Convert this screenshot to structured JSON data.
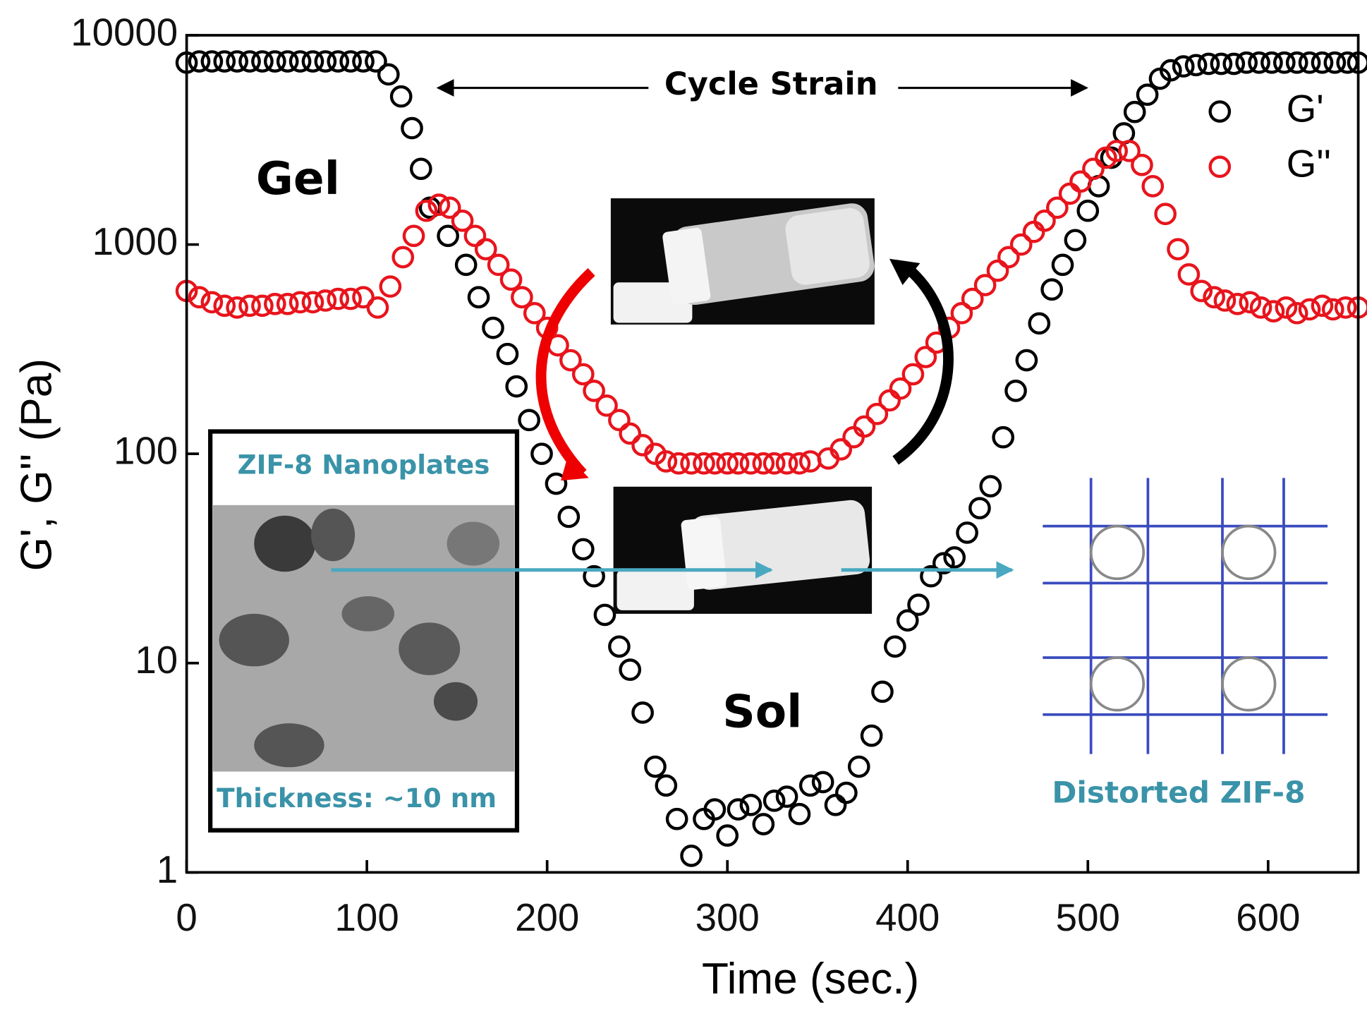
{
  "chart_data": {
    "type": "scatter",
    "xlabel": "Time (sec.)",
    "ylabel": "G', G'' (Pa)",
    "xlim": [
      0,
      650
    ],
    "ylim": [
      1,
      10000
    ],
    "ylog": true,
    "xticks": [
      0,
      100,
      200,
      300,
      400,
      500,
      600
    ],
    "yticks": [
      1,
      10,
      100,
      1000,
      10000
    ],
    "legend": "upper right",
    "series": [
      {
        "name": "G'",
        "color": "#000000",
        "x": [
          0,
          7,
          14,
          21,
          28,
          35,
          42,
          49,
          56,
          63,
          70,
          77,
          84,
          91,
          98,
          105,
          112,
          119,
          125,
          130,
          135,
          145,
          155,
          162,
          170,
          178,
          183,
          190,
          197,
          205,
          212,
          220,
          226,
          232,
          240,
          246,
          253,
          260,
          266,
          272,
          280,
          287,
          293,
          300,
          306,
          313,
          320,
          326,
          333,
          340,
          346,
          353,
          360,
          366,
          373,
          380,
          386,
          393,
          400,
          406,
          413,
          420,
          426,
          433,
          440,
          446,
          453,
          460,
          466,
          473,
          480,
          486,
          493,
          500,
          506,
          513,
          520,
          526,
          533,
          540,
          546,
          553,
          560,
          567,
          574,
          581,
          588,
          595,
          602,
          609,
          616,
          623,
          630,
          637,
          644,
          650
        ],
        "values": [
          7400,
          7500,
          7500,
          7500,
          7500,
          7500,
          7500,
          7500,
          7500,
          7500,
          7500,
          7500,
          7500,
          7500,
          7500,
          7500,
          6500,
          5100,
          3600,
          2300,
          1500,
          1100,
          800,
          560,
          400,
          300,
          210,
          145,
          100,
          72,
          50,
          35,
          26,
          17,
          12,
          9.3,
          5.8,
          3.2,
          2.6,
          1.8,
          1.2,
          1.8,
          2.0,
          1.5,
          2.0,
          2.1,
          1.7,
          2.2,
          2.3,
          1.9,
          2.6,
          2.7,
          2.1,
          2.4,
          3.2,
          4.5,
          7.3,
          12,
          16,
          19,
          26,
          30,
          32,
          42,
          55,
          70,
          120,
          200,
          280,
          420,
          610,
          800,
          1050,
          1450,
          1900,
          2600,
          3400,
          4300,
          5200,
          6200,
          6800,
          7100,
          7200,
          7300,
          7300,
          7300,
          7400,
          7400,
          7400,
          7400,
          7400,
          7400,
          7400,
          7400,
          7400,
          7400
        ]
      },
      {
        "name": "G''",
        "color": "#e8141c",
        "x": [
          0,
          7,
          14,
          21,
          28,
          35,
          42,
          49,
          56,
          63,
          70,
          77,
          84,
          91,
          98,
          106,
          113,
          120,
          126,
          133,
          140,
          146,
          153,
          160,
          166,
          173,
          180,
          186,
          193,
          200,
          206,
          213,
          220,
          226,
          233,
          240,
          246,
          253,
          260,
          266,
          273,
          280,
          287,
          293,
          300,
          306,
          313,
          320,
          326,
          333,
          340,
          346,
          356,
          363,
          370,
          376,
          383,
          390,
          396,
          403,
          410,
          416,
          423,
          430,
          436,
          443,
          450,
          456,
          463,
          470,
          476,
          483,
          490,
          496,
          503,
          510,
          516,
          523,
          530,
          536,
          543,
          550,
          556,
          563,
          570,
          576,
          583,
          590,
          596,
          603,
          610,
          616,
          623,
          630,
          636,
          643,
          650
        ],
        "values": [
          600,
          560,
          530,
          510,
          500,
          510,
          510,
          520,
          520,
          530,
          530,
          540,
          550,
          550,
          560,
          500,
          630,
          870,
          1100,
          1450,
          1550,
          1500,
          1300,
          1100,
          950,
          800,
          680,
          560,
          470,
          400,
          330,
          280,
          240,
          200,
          170,
          145,
          125,
          110,
          100,
          92,
          90,
          90,
          90,
          90,
          90,
          90,
          90,
          90,
          90,
          90,
          90,
          92,
          95,
          105,
          120,
          135,
          155,
          180,
          205,
          240,
          290,
          340,
          400,
          470,
          550,
          640,
          750,
          870,
          1000,
          1150,
          1300,
          1500,
          1750,
          2000,
          2300,
          2600,
          2800,
          2800,
          2400,
          1900,
          1400,
          950,
          720,
          600,
          560,
          540,
          520,
          530,
          500,
          480,
          500,
          470,
          490,
          510,
          490,
          500,
          500
        ]
      }
    ]
  },
  "annotations": {
    "cycle": "Cycle Strain",
    "gel": "Gel",
    "sol": "Sol",
    "tem_title": "ZIF-8 Nanoplates",
    "tem_caption": "Thickness: ~10 nm",
    "structure": "Distorted ZIF-8"
  }
}
